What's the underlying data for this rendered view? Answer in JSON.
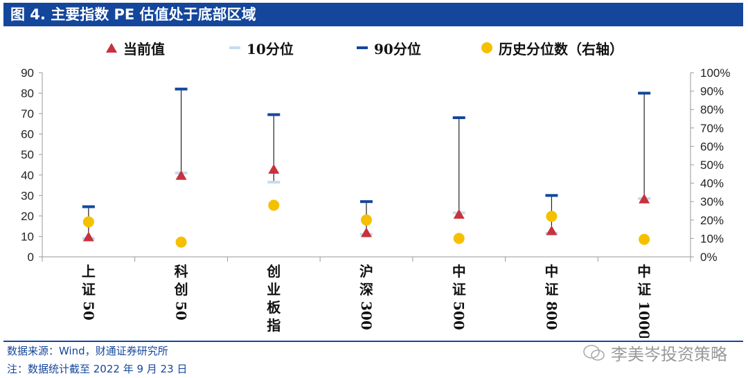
{
  "title": "图 4. 主要指数 PE 估值处于底部区域",
  "legend": [
    {
      "label": "当前值",
      "color": "#c8323c",
      "icon": "triangle-icon"
    },
    {
      "label": "10分位",
      "color": "#c5dcf0",
      "icon": "dash-icon"
    },
    {
      "label": "90分位",
      "color": "#14469b",
      "icon": "dash-icon"
    },
    {
      "label": "历史分位数（右轴）",
      "color": "#f5c000",
      "icon": "circle-icon"
    }
  ],
  "chart_data": {
    "type": "scatter",
    "categories": [
      "上证50",
      "科创50",
      "创业板指",
      "沪深300",
      "中证500",
      "中证800",
      "中证1000"
    ],
    "category_labels": [
      [
        "上",
        "证",
        "50"
      ],
      [
        "科",
        "创",
        "50"
      ],
      [
        "创",
        "业",
        "板",
        "指"
      ],
      [
        "沪",
        "深",
        "300"
      ],
      [
        "中",
        "证",
        "500"
      ],
      [
        "中",
        "证",
        "800"
      ],
      [
        "中",
        "证",
        "1000"
      ]
    ],
    "y_left": {
      "min": 0,
      "max": 90,
      "ticks": [
        "0",
        "10",
        "20",
        "30",
        "40",
        "50",
        "60",
        "70",
        "80",
        "90"
      ]
    },
    "y_right": {
      "min": 0,
      "max": 1,
      "ticks": [
        "0%",
        "10%",
        "20%",
        "30%",
        "40%",
        "50%",
        "60%",
        "70%",
        "80%",
        "90%",
        "100%"
      ]
    },
    "series": [
      {
        "name": "当前值",
        "values": [
          10,
          40,
          43,
          12,
          21,
          13,
          28.5
        ]
      },
      {
        "name": "10分位",
        "values": [
          9,
          41,
          36.5,
          11,
          21.5,
          11.5,
          28.5
        ]
      },
      {
        "name": "90分位",
        "values": [
          24.5,
          82,
          69.5,
          27,
          68,
          30,
          80
        ]
      },
      {
        "name": "历史分位数（右轴）",
        "values": [
          0.19,
          0.08,
          0.28,
          0.2,
          0.1,
          0.22,
          0.095
        ]
      }
    ]
  },
  "footer": {
    "source": "数据来源：Wind，财通证券研究所",
    "note": "注：数据统计截至 2022 年 9 月 23 日"
  },
  "watermark": "李美岑投资策略"
}
